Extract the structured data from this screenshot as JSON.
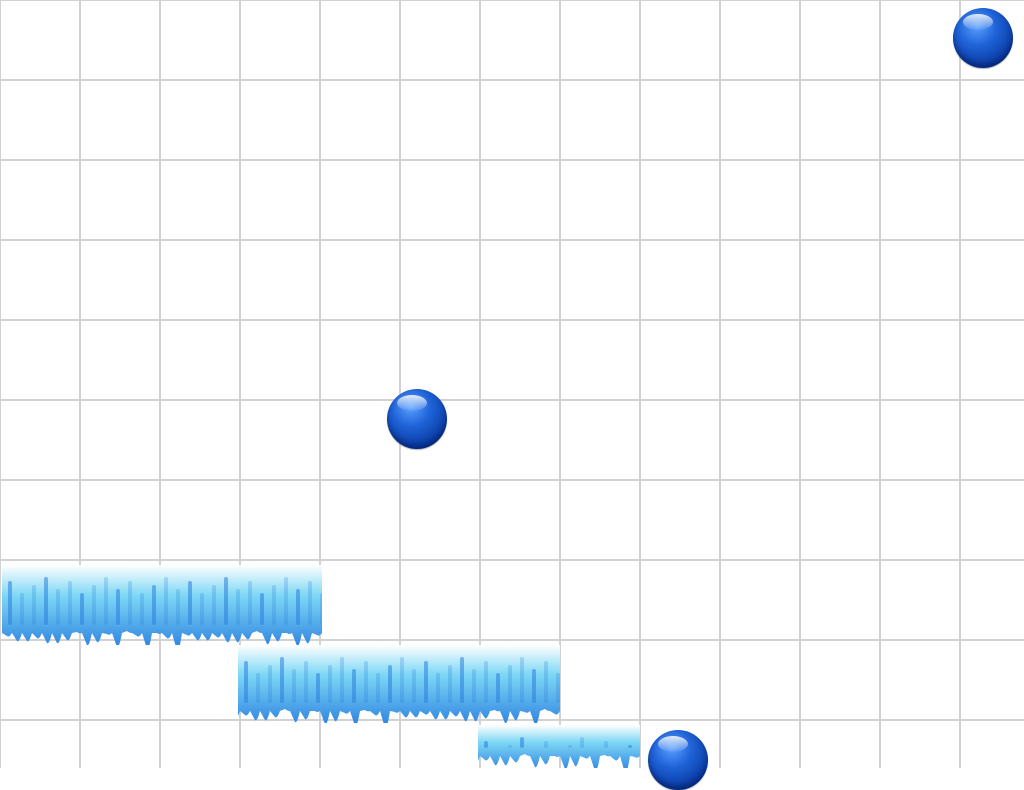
{
  "game": {
    "board": {
      "grid_color": "#d2d2d2",
      "background": "#ffffff"
    },
    "balls": [
      {
        "id": "ball-1",
        "color": "#1f63d8"
      },
      {
        "id": "ball-2",
        "color": "#1f63d8"
      },
      {
        "id": "ball-3",
        "color": "#1f63d8"
      }
    ],
    "ice_platforms": [
      {
        "id": "ice-1",
        "colors": [
          "#ffffff",
          "#7fd8f5",
          "#2a7fe0"
        ]
      },
      {
        "id": "ice-2",
        "colors": [
          "#ffffff",
          "#7fd8f5",
          "#2a7fe0"
        ]
      },
      {
        "id": "ice-3",
        "colors": [
          "#ffffff",
          "#7fd8f5",
          "#2a7fe0"
        ]
      }
    ]
  }
}
